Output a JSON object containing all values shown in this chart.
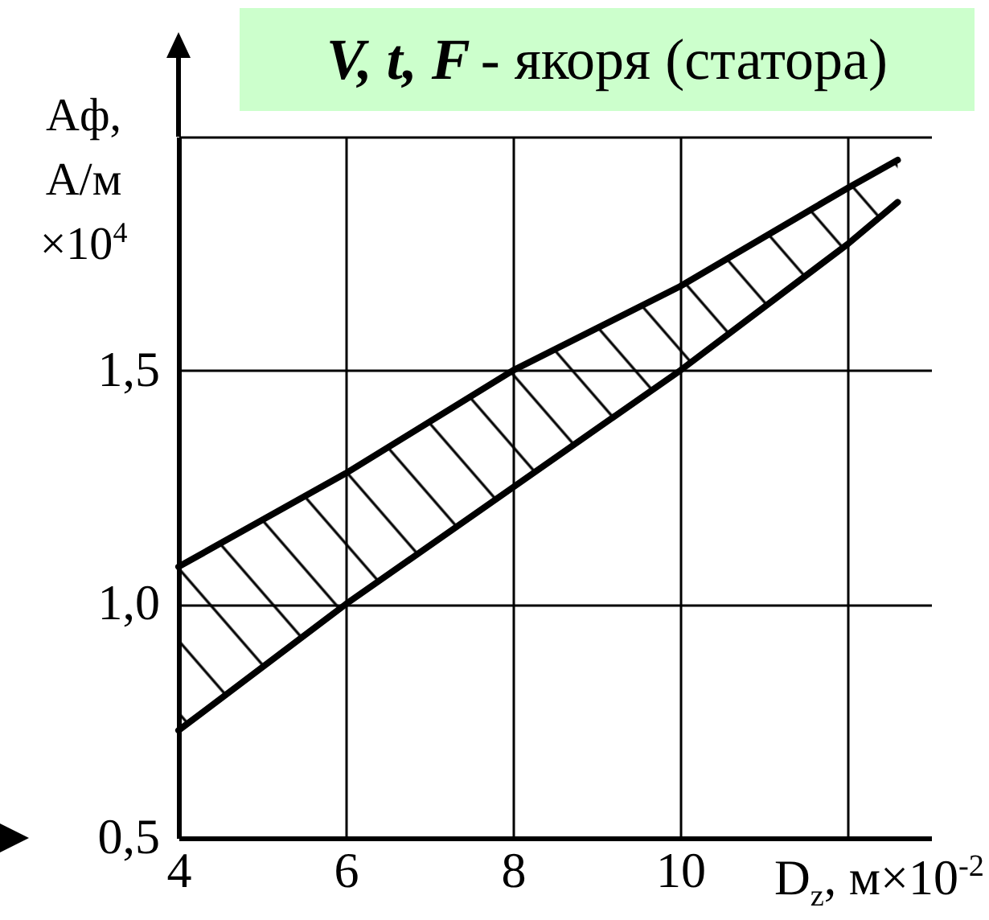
{
  "chart_data": {
    "type": "line",
    "title": "V, t, F - якоря (статора)",
    "xlabel": "D$_{z}$, м×10$^{-2}$",
    "ylabel": "Aф, А/м ×10$^{4}$",
    "x": [
      4,
      6,
      8,
      10,
      12,
      12.6
    ],
    "series": [
      {
        "color": "#000000",
        "values": [
          1.08,
          1.28,
          1.5,
          1.68,
          1.89,
          1.95
        ],
        "lower": [
          0.73,
          1.0,
          1.25,
          1.5,
          1.77,
          1.86
        ],
        "upper": [
          1.08,
          1.28,
          1.5,
          1.68,
          1.89,
          1.95
        ]
      },
      {
        "color": "#000000",
        "values": [
          0.73,
          1.0,
          1.25,
          1.5,
          1.77,
          1.86
        ]
      }
    ],
    "xlim": [
      4,
      13
    ],
    "ylim": [
      0.5,
      2
    ],
    "xticks": [
      4,
      6,
      8,
      10,
      {
        "value": 12,
        "label": null
      }
    ],
    "yticks": [
      {
        "value": 0.5,
        "label": "0,5"
      },
      {
        "value": 1,
        "label": "1,0"
      },
      {
        "value": 1.5,
        "label": "1,5"
      },
      {
        "value": 2,
        "label": null
      }
    ],
    "grid": true
  }
}
